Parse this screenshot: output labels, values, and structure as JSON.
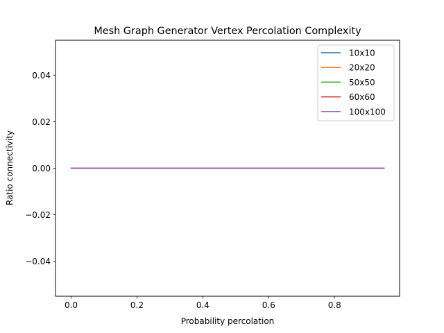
{
  "chart_data": {
    "type": "line",
    "title": "Mesh Graph Generator Vertex Percolation Complexity",
    "xlabel": "Probability percolation",
    "ylabel": "Ratio connectivity",
    "xlim": [
      -0.0475,
      0.9975
    ],
    "ylim": [
      -0.055,
      0.055
    ],
    "xticks": [
      0.0,
      0.2,
      0.4,
      0.6,
      0.8
    ],
    "xtick_labels": [
      "0.0",
      "0.2",
      "0.4",
      "0.6",
      "0.8"
    ],
    "yticks": [
      -0.04,
      -0.02,
      0.0,
      0.02,
      0.04
    ],
    "ytick_labels": [
      "−0.04",
      "−0.02",
      "0.00",
      "0.02",
      "0.04"
    ],
    "grid": false,
    "legend_position": "top-right",
    "x": [
      0.0,
      0.05,
      0.1,
      0.15,
      0.2,
      0.25,
      0.3,
      0.35,
      0.4,
      0.45,
      0.5,
      0.55,
      0.6,
      0.65,
      0.7,
      0.75,
      0.8,
      0.85,
      0.9,
      0.95
    ],
    "series": [
      {
        "name": "10x10",
        "color": "#1f77b4",
        "values": [
          0,
          0,
          0,
          0,
          0,
          0,
          0,
          0,
          0,
          0,
          0,
          0,
          0,
          0,
          0,
          0,
          0,
          0,
          0,
          0
        ]
      },
      {
        "name": "20x20",
        "color": "#ff7f0e",
        "values": [
          0,
          0,
          0,
          0,
          0,
          0,
          0,
          0,
          0,
          0,
          0,
          0,
          0,
          0,
          0,
          0,
          0,
          0,
          0,
          0
        ]
      },
      {
        "name": "50x50",
        "color": "#2ca02c",
        "values": [
          0,
          0,
          0,
          0,
          0,
          0,
          0,
          0,
          0,
          0,
          0,
          0,
          0,
          0,
          0,
          0,
          0,
          0,
          0,
          0
        ]
      },
      {
        "name": "60x60",
        "color": "#d62728",
        "values": [
          0,
          0,
          0,
          0,
          0,
          0,
          0,
          0,
          0,
          0,
          0,
          0,
          0,
          0,
          0,
          0,
          0,
          0,
          0,
          0
        ]
      },
      {
        "name": "100x100",
        "color": "#9467bd",
        "values": [
          0,
          0,
          0,
          0,
          0,
          0,
          0,
          0,
          0,
          0,
          0,
          0,
          0,
          0,
          0,
          0,
          0,
          0,
          0,
          0
        ]
      }
    ]
  }
}
